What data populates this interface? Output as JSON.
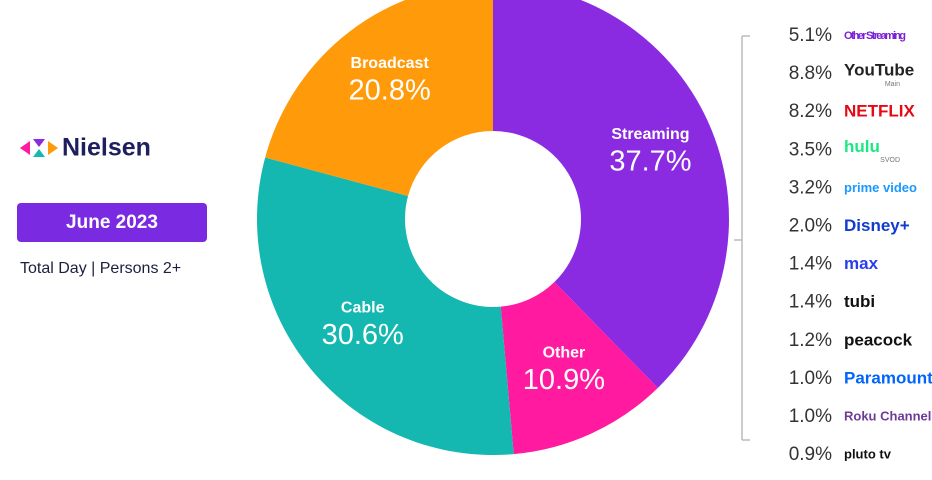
{
  "header": {
    "brand": "Nielsen",
    "period": "June 2023",
    "subtitle": "Total Day | Persons 2+"
  },
  "chart_data": {
    "type": "pie",
    "donut": true,
    "categories": [
      "Streaming",
      "Other",
      "Cable",
      "Broadcast"
    ],
    "values": [
      37.7,
      10.9,
      30.6,
      20.8
    ],
    "value_labels": [
      "37.7%",
      "10.9%",
      "30.6%",
      "20.8%"
    ],
    "colors": [
      "#8a2be2",
      "#ff1aa0",
      "#14b8b0",
      "#ff9a0a"
    ]
  },
  "streaming_breakdown": {
    "items": [
      {
        "name": "Other Streaming",
        "color": "#7a20d8",
        "value": 5.1,
        "label": "5.1%"
      },
      {
        "name": "YouTube",
        "sub": "Main",
        "color": "#222222",
        "value": 8.8,
        "label": "8.8%"
      },
      {
        "name": "NETFLIX",
        "color": "#e50914",
        "value": 8.2,
        "label": "8.2%"
      },
      {
        "name": "hulu",
        "sub": "SVOD",
        "color": "#1ce783",
        "value": 3.5,
        "label": "3.5%"
      },
      {
        "name": "prime video",
        "color": "#1a98ff",
        "value": 3.2,
        "label": "3.2%"
      },
      {
        "name": "Disney+",
        "color": "#113ccf",
        "value": 2,
        "label": "2.0%"
      },
      {
        "name": "max",
        "color": "#2a3cf0",
        "value": 1.4,
        "label": "1.4%"
      },
      {
        "name": "tubi",
        "color": "#111111",
        "value": 1.4,
        "label": "1.4%"
      },
      {
        "name": "peacock",
        "color": "#111111",
        "value": 1.2,
        "label": "1.2%"
      },
      {
        "name": "Paramount+",
        "color": "#0064ff",
        "value": 1,
        "label": "1.0%"
      },
      {
        "name": "Roku Channel",
        "color": "#6c3c97",
        "value": 1,
        "label": "1.0%"
      },
      {
        "name": "pluto tv",
        "color": "#111111",
        "value": 0.9,
        "label": "0.9%"
      }
    ]
  }
}
